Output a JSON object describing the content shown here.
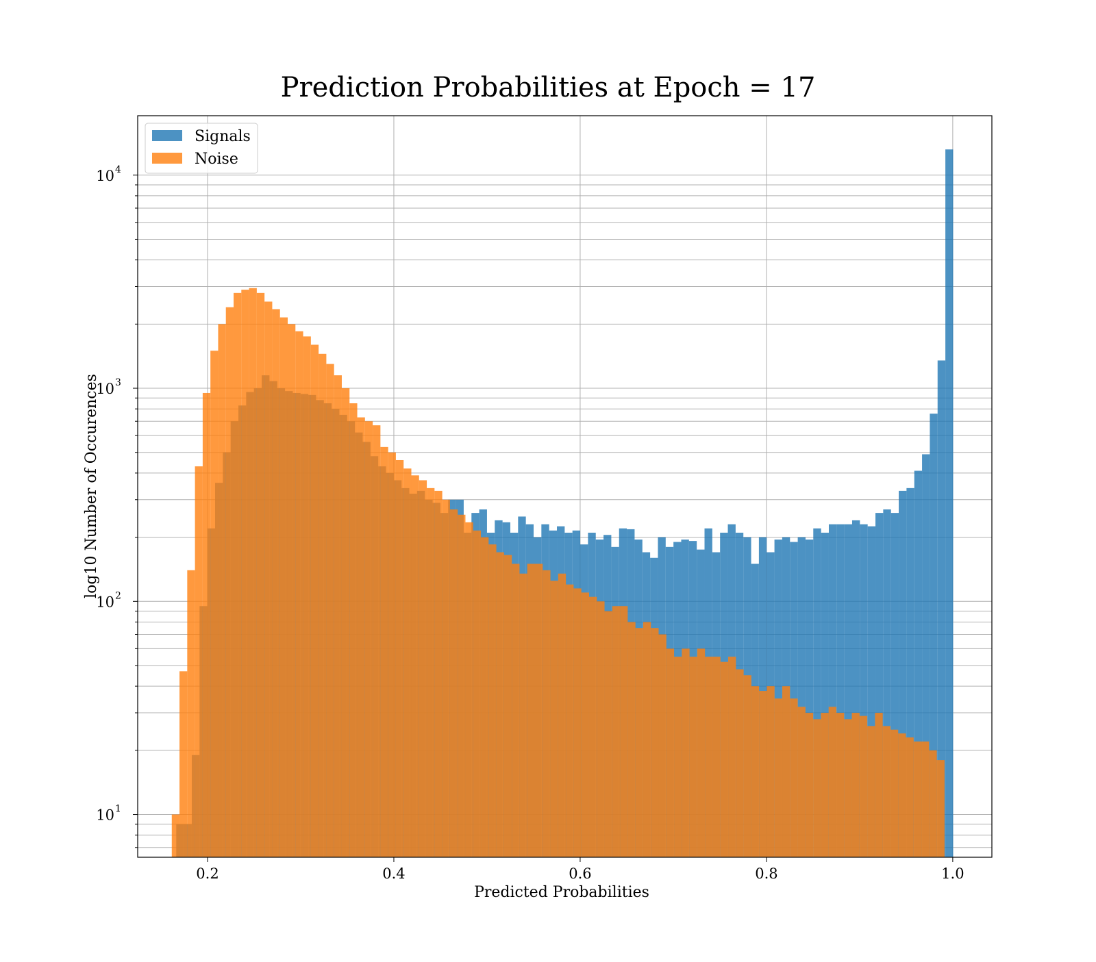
{
  "chart_data": {
    "type": "histogram",
    "title": "Prediction Probabilities at Epoch = 17",
    "xlabel": "Predicted Probabilities",
    "ylabel": "log10 Number of Occurences",
    "xlim": [
      0.125,
      1.042
    ],
    "ylim": [
      6.3,
      19000
    ],
    "yscale": "log",
    "grid": true,
    "legend_position": "top-left",
    "x_ticks": [
      "0.2",
      "0.4",
      "0.6",
      "0.8",
      "1.0"
    ],
    "x_tick_values": [
      0.2,
      0.4,
      0.6,
      0.8,
      1.0
    ],
    "y_ticks": [
      {
        "value": 10,
        "base": "10",
        "exp": "1"
      },
      {
        "value": 100,
        "base": "10",
        "exp": "2"
      },
      {
        "value": 1000,
        "base": "10",
        "exp": "3"
      },
      {
        "value": 10000,
        "base": "10",
        "exp": "4"
      }
    ],
    "series": [
      {
        "name": "Signals",
        "color": "#1f77b4",
        "opacity": 0.8,
        "bin_start": 0.1664,
        "bin_width": 0.00834,
        "values": [
          9,
          9,
          19,
          95,
          220,
          360,
          500,
          700,
          830,
          960,
          1000,
          1150,
          1080,
          1000,
          970,
          950,
          940,
          930,
          880,
          850,
          800,
          750,
          700,
          620,
          560,
          480,
          430,
          400,
          370,
          340,
          320,
          330,
          300,
          290,
          260,
          300,
          300,
          210,
          260,
          270,
          210,
          240,
          235,
          210,
          250,
          230,
          200,
          230,
          215,
          225,
          210,
          215,
          185,
          210,
          195,
          205,
          180,
          220,
          218,
          195,
          170,
          160,
          200,
          180,
          190,
          195,
          192,
          175,
          220,
          170,
          210,
          230,
          210,
          200,
          150,
          200,
          170,
          195,
          200,
          190,
          200,
          195,
          220,
          210,
          230,
          230,
          230,
          240,
          230,
          225,
          260,
          270,
          260,
          330,
          340,
          410,
          490,
          760,
          1350,
          13200
        ]
      },
      {
        "name": "Noise",
        "color": "#ff7f0e",
        "opacity": 0.8,
        "bin_start": 0.1616,
        "bin_width": 0.008296,
        "values": [
          10,
          47,
          140,
          430,
          950,
          1500,
          2000,
          2400,
          2800,
          2900,
          2950,
          2800,
          2550,
          2350,
          2150,
          2000,
          1850,
          1750,
          1600,
          1450,
          1300,
          1150,
          1000,
          850,
          730,
          700,
          670,
          530,
          500,
          460,
          420,
          390,
          370,
          340,
          330,
          300,
          270,
          255,
          235,
          215,
          200,
          185,
          170,
          165,
          150,
          135,
          150,
          150,
          140,
          125,
          135,
          120,
          115,
          110,
          105,
          100,
          90,
          95,
          95,
          80,
          75,
          80,
          75,
          70,
          60,
          55,
          60,
          55,
          60,
          55,
          55,
          52,
          55,
          48,
          45,
          40,
          38,
          40,
          35,
          40,
          35,
          32,
          30,
          28,
          30,
          32,
          30,
          28,
          30,
          29,
          26,
          30,
          26,
          25,
          24,
          23,
          22,
          22,
          20,
          18
        ]
      }
    ]
  }
}
